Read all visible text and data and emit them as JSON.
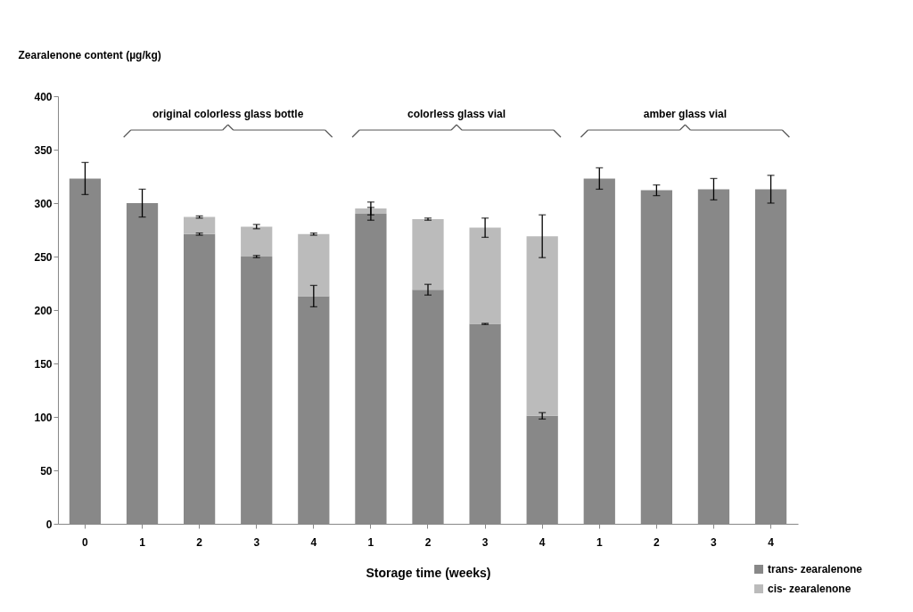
{
  "chart_data": {
    "type": "bar",
    "stacked": true,
    "ylabel": "Zearalenone content (µg/kg)",
    "xlabel": "Storage time (weeks)",
    "categories": [
      "0",
      "1",
      "2",
      "3",
      "4",
      "1",
      "2",
      "3",
      "4",
      "1",
      "2",
      "3",
      "4"
    ],
    "series": [
      {
        "name": "trans- zearalenone",
        "color": "#888888",
        "values": [
          323,
          300,
          271,
          250,
          213,
          290,
          219,
          187,
          101,
          323,
          312,
          313,
          313
        ],
        "errors": [
          15,
          13,
          1,
          1,
          10,
          6,
          5,
          0.5,
          3,
          10,
          5,
          10,
          13
        ]
      },
      {
        "name": "cis- zearalenone",
        "color": "#bbbbbb",
        "values": [
          0,
          0,
          16,
          28,
          58,
          5,
          66,
          90,
          168,
          0,
          0,
          0,
          0
        ],
        "errors": [
          null,
          null,
          1,
          2,
          1,
          6,
          1,
          9,
          20,
          null,
          null,
          null,
          null
        ]
      }
    ],
    "ylim": [
      0,
      400
    ],
    "yticks": [
      0,
      50,
      100,
      150,
      200,
      250,
      300,
      350,
      400
    ],
    "grid": false,
    "legend": "bottom right",
    "annotations": [
      "original colorless glass bottle",
      "colorless glass vial",
      "amber glass vial"
    ]
  }
}
